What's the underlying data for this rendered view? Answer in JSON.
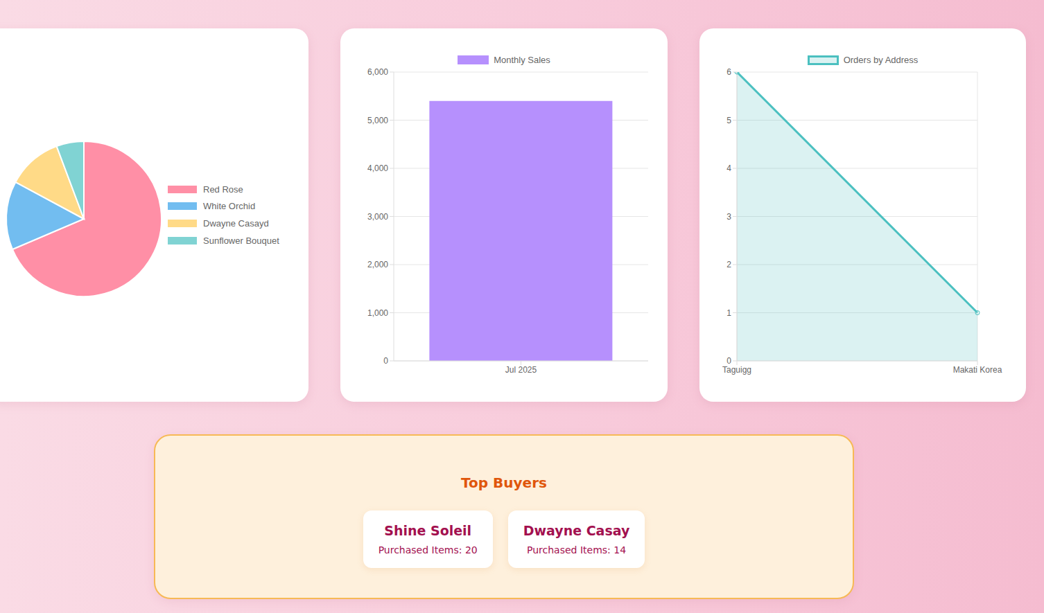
{
  "chart_data": [
    {
      "type": "pie",
      "categories": [
        "Red Rose",
        "White Orchid",
        "Dwayne Casayd",
        "Sunflower Bouquet"
      ],
      "values": [
        24,
        5,
        4,
        2
      ],
      "colors": [
        "#ff8fa6",
        "#72bdf0",
        "#ffda87",
        "#80d3d3"
      ],
      "legend": "right"
    },
    {
      "type": "bar",
      "categories": [
        "Jul 2025"
      ],
      "series": [
        {
          "name": "Monthly Sales",
          "color": "#b690fd",
          "values": [
            5400
          ]
        }
      ],
      "ylim": [
        0,
        6000
      ],
      "yticks": [
        0,
        {
          "value": 1000,
          "label": "1,000"
        },
        {
          "value": 2000,
          "label": "2,000"
        },
        {
          "value": 3000,
          "label": "3,000"
        },
        {
          "value": 4000,
          "label": "4,000"
        },
        {
          "value": 5000,
          "label": "5,000"
        },
        {
          "value": 6000,
          "label": "6,000"
        }
      ],
      "grid": true,
      "legend": "top"
    },
    {
      "type": "area",
      "categories": [
        "Taguigg",
        "Makati Korea"
      ],
      "series": [
        {
          "name": "Orders by Address",
          "color": "#4bc0c0",
          "values": [
            6,
            1
          ],
          "marker": "circle"
        }
      ],
      "ylim": [
        0,
        6
      ],
      "yticks": [
        0,
        1,
        2,
        3,
        4,
        5,
        6
      ],
      "grid": true,
      "legend": "top"
    }
  ],
  "top_buyers": {
    "title": "Top Buyers",
    "item_label": "Purchased Items:",
    "buyers": [
      {
        "name": "Shine Soleil",
        "purchased_items": 20
      },
      {
        "name": "Dwayne Casay",
        "purchased_items": 14
      }
    ]
  }
}
